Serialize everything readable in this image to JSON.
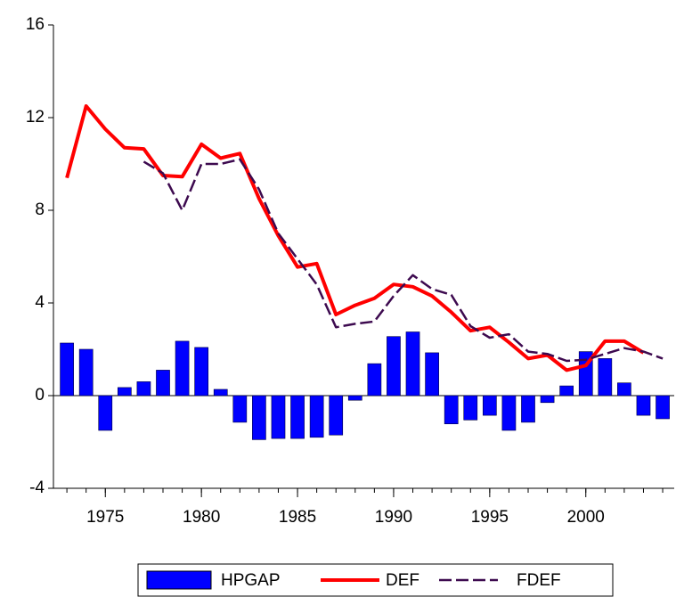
{
  "chart_data": {
    "type": "combo",
    "x": [
      1973,
      1974,
      1975,
      1976,
      1977,
      1978,
      1979,
      1980,
      1981,
      1982,
      1983,
      1984,
      1985,
      1986,
      1987,
      1988,
      1989,
      1990,
      1991,
      1992,
      1993,
      1994,
      1995,
      1996,
      1997,
      1998,
      1999,
      2000,
      2001,
      2002,
      2003,
      2004
    ],
    "series": [
      {
        "name": "HPGAP",
        "type": "bar",
        "color": "#0000ff",
        "values": [
          2.27,
          2.0,
          -1.5,
          0.35,
          0.6,
          1.1,
          2.35,
          2.08,
          0.27,
          -1.15,
          -1.9,
          -1.85,
          -1.85,
          -1.8,
          -1.7,
          -0.2,
          1.38,
          2.55,
          2.75,
          1.85,
          -1.22,
          -1.05,
          -0.85,
          -1.5,
          -1.15,
          -0.3,
          0.42,
          1.9,
          1.6,
          0.55,
          -0.85,
          -1.0
        ]
      },
      {
        "name": "DEF",
        "type": "line",
        "color": "#ff0000",
        "values": [
          9.4,
          12.5,
          11.5,
          10.7,
          10.65,
          9.5,
          9.45,
          10.85,
          10.25,
          10.45,
          8.5,
          6.9,
          5.55,
          5.7,
          3.5,
          3.9,
          4.2,
          4.8,
          4.7,
          4.3,
          3.6,
          2.8,
          2.95,
          2.3,
          1.6,
          1.75,
          1.1,
          1.3,
          2.35,
          2.35,
          1.85,
          null
        ]
      },
      {
        "name": "FDEF",
        "type": "line",
        "color": "#3d0a4f",
        "dashed": true,
        "values": [
          null,
          null,
          null,
          null,
          10.1,
          9.6,
          8.0,
          10.0,
          10.0,
          10.2,
          8.9,
          7.0,
          5.9,
          4.8,
          2.95,
          3.1,
          3.2,
          4.3,
          5.2,
          4.6,
          4.35,
          3.0,
          2.5,
          2.65,
          1.9,
          1.8,
          1.5,
          1.55,
          1.8,
          2.05,
          1.9,
          1.6
        ]
      }
    ],
    "xlim": [
      1972.3,
      2004.6
    ],
    "xticks": [
      1975,
      1980,
      1985,
      1990,
      1995,
      2000
    ],
    "ylim": [
      -4,
      16
    ],
    "yticks": [
      -4,
      0,
      4,
      8,
      12,
      16
    ],
    "legend": "bottom"
  }
}
